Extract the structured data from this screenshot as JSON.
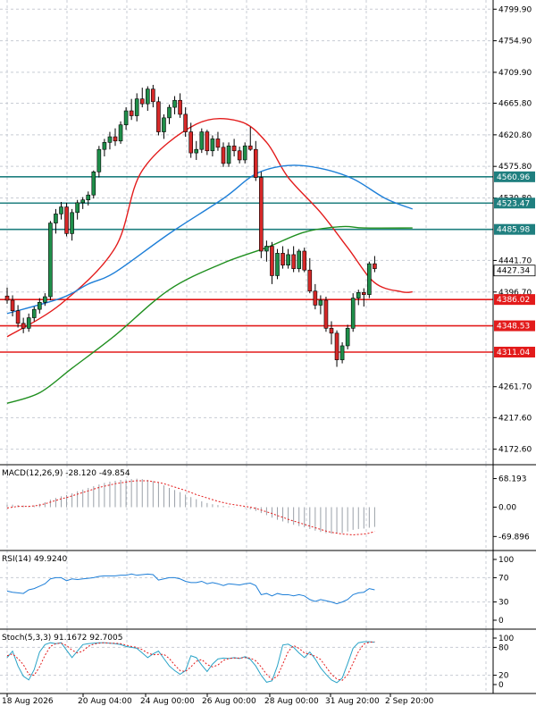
{
  "chart_data": {
    "type": "candlestick",
    "x_ticks": [
      "18 Aug 2026",
      "20 Aug 04:00",
      "24 Aug 00:00",
      "26 Aug 00:00",
      "28 Aug 00:00",
      "31 Aug 20:00",
      "2 Sep 20:00"
    ],
    "price_axis": {
      "ylim": [
        4150.5,
        4813
      ],
      "ticks": [
        "4799.90",
        "4754.90",
        "4709.90",
        "4665.80",
        "4620.80",
        "4575.80",
        "4530.80",
        "4441.70",
        "4396.70",
        "4261.70",
        "4217.60",
        "4172.60"
      ]
    },
    "candles": [
      [
        4391,
        4403,
        4380,
        4385
      ],
      [
        4385,
        4392,
        4362,
        4370
      ],
      [
        4370,
        4378,
        4346,
        4352
      ],
      [
        4352,
        4360,
        4338,
        4345
      ],
      [
        4345,
        4366,
        4340,
        4360
      ],
      [
        4360,
        4376,
        4355,
        4372
      ],
      [
        4372,
        4388,
        4366,
        4382
      ],
      [
        4382,
        4395,
        4377,
        4390
      ],
      [
        4390,
        4498,
        4385,
        4495
      ],
      [
        4495,
        4515,
        4480,
        4508
      ],
      [
        4508,
        4525,
        4500,
        4518
      ],
      [
        4518,
        4524,
        4476,
        4480
      ],
      [
        4480,
        4515,
        4470,
        4510
      ],
      [
        4510,
        4528,
        4500,
        4524
      ],
      [
        4524,
        4532,
        4515,
        4528
      ],
      [
        4528,
        4540,
        4520,
        4535
      ],
      [
        4535,
        4570,
        4530,
        4568
      ],
      [
        4568,
        4605,
        4560,
        4600
      ],
      [
        4600,
        4615,
        4590,
        4610
      ],
      [
        4610,
        4625,
        4600,
        4618
      ],
      [
        4618,
        4630,
        4605,
        4612
      ],
      [
        4612,
        4640,
        4608,
        4635
      ],
      [
        4635,
        4660,
        4628,
        4655
      ],
      [
        4655,
        4672,
        4642,
        4648
      ],
      [
        4648,
        4680,
        4640,
        4672
      ],
      [
        4672,
        4688,
        4660,
        4665
      ],
      [
        4665,
        4690,
        4655,
        4686
      ],
      [
        4686,
        4692,
        4660,
        4668
      ],
      [
        4668,
        4675,
        4620,
        4625
      ],
      [
        4625,
        4650,
        4615,
        4645
      ],
      [
        4645,
        4664,
        4636,
        4660
      ],
      [
        4660,
        4676,
        4650,
        4670
      ],
      [
        4670,
        4680,
        4645,
        4650
      ],
      [
        4650,
        4660,
        4618,
        4625
      ],
      [
        4625,
        4638,
        4588,
        4595
      ],
      [
        4595,
        4612,
        4585,
        4600
      ],
      [
        4600,
        4630,
        4595,
        4625
      ],
      [
        4625,
        4628,
        4592,
        4598
      ],
      [
        4598,
        4620,
        4590,
        4615
      ],
      [
        4615,
        4625,
        4598,
        4603
      ],
      [
        4603,
        4610,
        4575,
        4580
      ],
      [
        4580,
        4610,
        4575,
        4605
      ],
      [
        4605,
        4615,
        4590,
        4598
      ],
      [
        4598,
        4604,
        4580,
        4585
      ],
      [
        4585,
        4610,
        4580,
        4605
      ],
      [
        4605,
        4632,
        4598,
        4600
      ],
      [
        4600,
        4612,
        4555,
        4560
      ],
      [
        4560,
        4568,
        4445,
        4455
      ],
      [
        4455,
        4470,
        4440,
        4462
      ],
      [
        4462,
        4468,
        4408,
        4420
      ],
      [
        4420,
        4458,
        4415,
        4452
      ],
      [
        4452,
        4462,
        4430,
        4435
      ],
      [
        4435,
        4458,
        4430,
        4450
      ],
      [
        4450,
        4462,
        4425,
        4430
      ],
      [
        4430,
        4458,
        4425,
        4455
      ],
      [
        4455,
        4460,
        4425,
        4428
      ],
      [
        4428,
        4445,
        4395,
        4398
      ],
      [
        4398,
        4408,
        4372,
        4378
      ],
      [
        4378,
        4392,
        4365,
        4385
      ],
      [
        4385,
        4390,
        4340,
        4345
      ],
      [
        4345,
        4355,
        4322,
        4338
      ],
      [
        4338,
        4342,
        4290,
        4300
      ],
      [
        4300,
        4325,
        4295,
        4320
      ],
      [
        4320,
        4350,
        4315,
        4345
      ],
      [
        4345,
        4395,
        4340,
        4388
      ],
      [
        4388,
        4400,
        4378,
        4396
      ],
      [
        4396,
        4402,
        4376,
        4393
      ],
      [
        4393,
        4440,
        4388,
        4437
      ],
      [
        4437,
        4448,
        4425,
        4430
      ]
    ],
    "moving_averages": [
      {
        "name": "MA-red",
        "color": "#e31b1b",
        "points": [
          [
            0,
            4333
          ],
          [
            10,
            4380
          ],
          [
            20,
            4460
          ],
          [
            25,
            4570
          ],
          [
            35,
            4636
          ],
          [
            43,
            4640
          ],
          [
            48,
            4610
          ],
          [
            52,
            4560
          ],
          [
            58,
            4510
          ],
          [
            63,
            4460
          ],
          [
            68,
            4410
          ],
          [
            73,
            4397
          ],
          [
            75,
            4397
          ]
        ]
      },
      {
        "name": "MA-blue",
        "color": "#1e7fd8",
        "points": [
          [
            0,
            4366
          ],
          [
            10,
            4388
          ],
          [
            15,
            4408
          ],
          [
            20,
            4425
          ],
          [
            30,
            4480
          ],
          [
            40,
            4530
          ],
          [
            46,
            4565
          ],
          [
            52,
            4577
          ],
          [
            58,
            4573
          ],
          [
            64,
            4558
          ],
          [
            70,
            4530
          ],
          [
            75,
            4515
          ]
        ]
      },
      {
        "name": "MA-green",
        "color": "#1f8f1f",
        "points": [
          [
            0,
            4238
          ],
          [
            6,
            4253
          ],
          [
            12,
            4288
          ],
          [
            20,
            4335
          ],
          [
            30,
            4400
          ],
          [
            40,
            4438
          ],
          [
            48,
            4460
          ],
          [
            55,
            4482
          ],
          [
            62,
            4490
          ],
          [
            66,
            4488
          ],
          [
            75,
            4488
          ]
        ]
      }
    ],
    "horizontal_levels": [
      {
        "value": 4560.96,
        "label": "4560.96",
        "color": "#1f7f7f"
      },
      {
        "value": 4523.47,
        "label": "4523.47",
        "color": "#1f7f7f"
      },
      {
        "value": 4485.98,
        "label": "4485.98",
        "color": "#1f7f7f"
      },
      {
        "value": 4386.02,
        "label": "4386.02",
        "color": "#e31b1b"
      },
      {
        "value": 4348.53,
        "label": "4348.53",
        "color": "#e31b1b"
      },
      {
        "value": 4311.04,
        "label": "4311.04",
        "color": "#e31b1b"
      }
    ],
    "current_price": {
      "value": 4427.34,
      "label": "4427.34"
    },
    "macd": {
      "label": "MACD(12,26,9) -28.120 -49.854",
      "ticks": [
        "68.193",
        "0.00",
        "-69.896"
      ],
      "ylim": [
        -82,
        80
      ],
      "hist": [
        6,
        6,
        5,
        4,
        3,
        4,
        8,
        12,
        18,
        22,
        26,
        29,
        33,
        38,
        42,
        46,
        50,
        54,
        58,
        61,
        63,
        65,
        66,
        67,
        68,
        67,
        65,
        62,
        58,
        52,
        46,
        41,
        36,
        30,
        24,
        19,
        14,
        10,
        7,
        5,
        3,
        2,
        1,
        0,
        -2,
        -5,
        -9,
        -14,
        -19,
        -25,
        -30,
        -34,
        -38,
        -42,
        -45,
        -48,
        -52,
        -56,
        -59,
        -62,
        -63,
        -63,
        -62,
        -58,
        -54,
        -52,
        -51,
        -49,
        -47
      ],
      "signal": [
        -2,
        0,
        2,
        2,
        2,
        3,
        5,
        8,
        12,
        16,
        20,
        23,
        27,
        31,
        35,
        39,
        43,
        47,
        50,
        53,
        56,
        58,
        60,
        62,
        63,
        63,
        63,
        61,
        59,
        56,
        52,
        48,
        44,
        40,
        35,
        30,
        26,
        22,
        18,
        14,
        11,
        8,
        6,
        4,
        2,
        0,
        -3,
        -7,
        -11,
        -15,
        -20,
        -24,
        -29,
        -33,
        -37,
        -41,
        -45,
        -49,
        -53,
        -57,
        -60,
        -62,
        -64,
        -65,
        -66,
        -65,
        -64,
        -62,
        -58
      ]
    },
    "rsi": {
      "label": "RSI(14) 49.9240",
      "ticks": [
        "100",
        "70",
        "30",
        "0"
      ],
      "ylim": [
        0,
        100
      ],
      "values": [
        48,
        46,
        45,
        44,
        50,
        52,
        56,
        60,
        68,
        70,
        70,
        65,
        68,
        67,
        68,
        69,
        70,
        72,
        73,
        73,
        73,
        74,
        74,
        76,
        74,
        75,
        76,
        75,
        66,
        68,
        70,
        70,
        68,
        64,
        62,
        62,
        64,
        60,
        62,
        60,
        57,
        60,
        59,
        58,
        60,
        61,
        57,
        42,
        44,
        40,
        44,
        42,
        42,
        40,
        42,
        40,
        34,
        31,
        34,
        32,
        30,
        27,
        30,
        34,
        42,
        45,
        46,
        52,
        50
      ]
    },
    "stochastic": {
      "label": "Stoch(5,3,3) 91.1672 92.7005",
      "ticks": [
        "100",
        "80",
        "20",
        "0"
      ],
      "ylim": [
        0,
        100
      ],
      "k": [
        58,
        72,
        40,
        18,
        10,
        32,
        70,
        86,
        90,
        88,
        90,
        74,
        58,
        72,
        86,
        88,
        89,
        90,
        90,
        89,
        88,
        86,
        82,
        80,
        78,
        68,
        58,
        66,
        72,
        56,
        40,
        30,
        22,
        30,
        62,
        58,
        42,
        28,
        44,
        55,
        57,
        56,
        58,
        56,
        60,
        54,
        40,
        20,
        5,
        8,
        40,
        85,
        87,
        80,
        68,
        58,
        70,
        55,
        36,
        22,
        10,
        4,
        14,
        45,
        78,
        90,
        92,
        92,
        91
      ],
      "d": [
        62,
        66,
        56,
        43,
        22,
        20,
        38,
        63,
        82,
        88,
        89,
        84,
        74,
        68,
        72,
        82,
        87,
        89,
        90,
        89,
        89,
        88,
        85,
        82,
        80,
        75,
        68,
        64,
        65,
        65,
        56,
        42,
        30,
        28,
        38,
        50,
        54,
        43,
        38,
        42,
        52,
        56,
        57,
        57,
        58,
        57,
        51,
        38,
        22,
        11,
        18,
        44,
        71,
        84,
        78,
        68,
        65,
        61,
        54,
        38,
        22,
        12,
        9,
        21,
        46,
        71,
        87,
        91,
        92
      ]
    }
  }
}
